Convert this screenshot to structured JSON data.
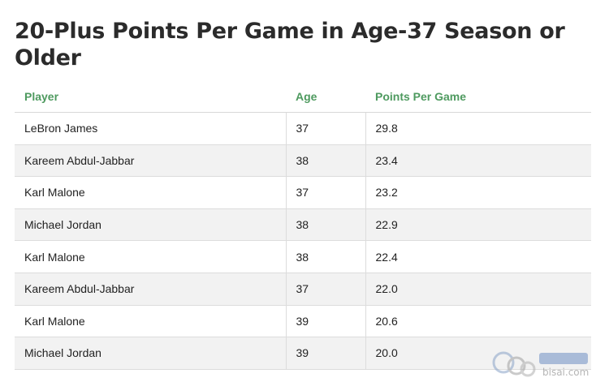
{
  "title": "20-Plus Points Per Game in Age-37 Season or Older",
  "watermark_text": "bisai.com",
  "chart_data": {
    "type": "table",
    "columns": [
      "Player",
      "Age",
      "Points Per Game"
    ],
    "rows": [
      [
        "LeBron James",
        "37",
        "29.8"
      ],
      [
        "Kareem Abdul-Jabbar",
        "38",
        "23.4"
      ],
      [
        "Karl Malone",
        "37",
        "23.2"
      ],
      [
        "Michael Jordan",
        "38",
        "22.9"
      ],
      [
        "Karl Malone",
        "38",
        "22.4"
      ],
      [
        "Kareem Abdul-Jabbar",
        "37",
        "22.0"
      ],
      [
        "Karl Malone",
        "39",
        "20.6"
      ],
      [
        "Michael Jordan",
        "39",
        "20.0"
      ]
    ]
  },
  "colors": {
    "header_text": "#4e9a5f",
    "stripe": "#f2f2f2",
    "border": "#dcdcdc"
  }
}
